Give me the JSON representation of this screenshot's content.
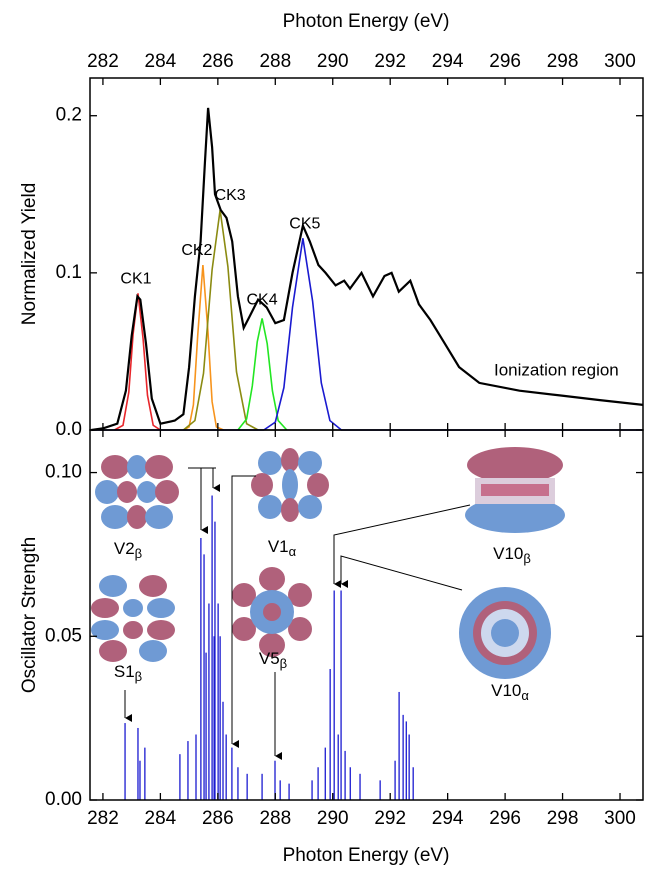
{
  "chart_data": [
    {
      "type": "line",
      "xlabel": "Photon Energy (eV)",
      "ylabel": "Normalized Yield",
      "xlim": [
        281.55,
        300.8
      ],
      "xticks": [
        282,
        284,
        286,
        288,
        290,
        292,
        294,
        296,
        298,
        300
      ],
      "ylim": [
        0,
        0.224
      ],
      "yticks": [
        {
          "value": 0,
          "label": "0.0"
        },
        0.1,
        0.2
      ],
      "annotations": [
        "Ionization region"
      ],
      "series": [
        {
          "name": "CK1",
          "color": "#e8262b",
          "x": [
            282.4,
            282.7,
            282.9,
            283.05,
            283.22,
            283.4,
            283.55,
            283.75,
            284.0
          ],
          "values": [
            0,
            0.003,
            0.024,
            0.061,
            0.087,
            0.058,
            0.022,
            0.003,
            0
          ]
        },
        {
          "name": "CK2",
          "color": "#f7941d",
          "x": [
            284.8,
            285.0,
            285.15,
            285.3,
            285.48,
            285.65,
            285.8,
            285.95,
            286.2
          ],
          "values": [
            0,
            0.002,
            0.016,
            0.06,
            0.105,
            0.064,
            0.018,
            0.002,
            0
          ]
        },
        {
          "name": "CK3",
          "color": "#8b8b12",
          "x": [
            284.8,
            285.2,
            285.5,
            285.8,
            286.08,
            286.35,
            286.65,
            287.0,
            287.4
          ],
          "values": [
            0,
            0.006,
            0.036,
            0.102,
            0.14,
            0.104,
            0.037,
            0.004,
            0
          ]
        },
        {
          "name": "CK4",
          "color": "#22e622",
          "x": [
            286.7,
            287.0,
            287.2,
            287.37,
            287.54,
            287.72,
            287.9,
            288.1,
            288.4
          ],
          "values": [
            0,
            0.007,
            0.028,
            0.056,
            0.071,
            0.055,
            0.025,
            0.006,
            0
          ]
        },
        {
          "name": "CK5",
          "color": "#1a1ad0",
          "x": [
            281.6,
            287.6,
            288.0,
            288.3,
            288.6,
            288.96,
            289.3,
            289.6,
            289.9,
            290.3,
            300.8
          ],
          "values": [
            0,
            0,
            0.005,
            0.027,
            0.078,
            0.122,
            0.082,
            0.03,
            0.006,
            0,
            0
          ]
        },
        {
          "color": "#000000",
          "x": [
            281.6,
            282.0,
            282.5,
            282.8,
            283.0,
            283.2,
            283.3,
            283.5,
            283.7,
            284.0,
            284.5,
            284.8,
            285.0,
            285.2,
            285.4,
            285.55,
            285.66,
            285.8,
            285.9,
            286.1,
            286.3,
            286.5,
            286.7,
            286.9,
            287.1,
            287.4,
            287.7,
            288.0,
            288.3,
            288.6,
            288.96,
            289.2,
            289.5,
            289.75,
            290.1,
            290.4,
            290.6,
            291.0,
            291.4,
            291.8,
            292.05,
            292.3,
            292.7,
            293.0,
            293.4,
            293.9,
            294.4,
            295.1,
            296.5,
            297.9,
            299.3,
            300.8
          ],
          "values": [
            0,
            0.001,
            0.004,
            0.025,
            0.06,
            0.085,
            0.083,
            0.055,
            0.02,
            0.004,
            0.006,
            0.01,
            0.04,
            0.085,
            0.12,
            0.17,
            0.205,
            0.18,
            0.15,
            0.14,
            0.135,
            0.12,
            0.085,
            0.065,
            0.072,
            0.083,
            0.078,
            0.068,
            0.07,
            0.1,
            0.13,
            0.12,
            0.105,
            0.1,
            0.092,
            0.095,
            0.09,
            0.1,
            0.085,
            0.098,
            0.1,
            0.088,
            0.095,
            0.08,
            0.07,
            0.055,
            0.04,
            0.03,
            0.025,
            0.022,
            0.019,
            0.016
          ]
        }
      ]
    },
    {
      "type": "stick",
      "xlabel": "Photon Energy (eV)",
      "ylabel": "Oscillator Strength",
      "xlim": [
        281.55,
        300.8
      ],
      "xticks": [
        282,
        284,
        286,
        288,
        290,
        292,
        294,
        296,
        298,
        300
      ],
      "ylim": [
        0,
        0.113
      ],
      "yticks": [
        {
          "value": 0,
          "label": "0.00"
        },
        {
          "value": 0.05,
          "label": "0.05"
        },
        {
          "value": 0.1,
          "label": "0.10"
        }
      ],
      "color": "#1a1ad0",
      "x": [
        282.77,
        283.22,
        283.29,
        283.46,
        284.68,
        284.96,
        285.24,
        285.41,
        285.52,
        285.59,
        285.69,
        285.8,
        285.87,
        285.9,
        286.01,
        286.08,
        286.18,
        286.29,
        286.49,
        286.7,
        287.02,
        287.54,
        287.99,
        288.17,
        288.48,
        289.28,
        289.49,
        289.74,
        289.91,
        290.05,
        290.19,
        290.29,
        290.43,
        290.61,
        290.95,
        291.65,
        292.17,
        292.31,
        292.45,
        292.56,
        292.66,
        292.8
      ],
      "values": [
        0.0235,
        0.022,
        0.012,
        0.016,
        0.014,
        0.018,
        0.02,
        0.08,
        0.075,
        0.045,
        0.06,
        0.093,
        0.05,
        0.085,
        0.06,
        0.05,
        0.03,
        0.02,
        0.016,
        0.01,
        0.008,
        0.008,
        0.012,
        0.006,
        0.005,
        0.006,
        0.01,
        0.016,
        0.04,
        0.064,
        0.02,
        0.064,
        0.015,
        0.01,
        0.008,
        0.006,
        0.012,
        0.033,
        0.026,
        0.024,
        0.02,
        0.01
      ],
      "annotations": [
        {
          "text": "V2",
          "sub": "β"
        },
        {
          "text": "V1",
          "sub": "α"
        },
        {
          "text": "S1",
          "sub": "β"
        },
        {
          "text": "V5",
          "sub": "β"
        },
        {
          "text": "V10",
          "sub": "β"
        },
        {
          "text": "V10",
          "sub": "α"
        }
      ]
    }
  ]
}
